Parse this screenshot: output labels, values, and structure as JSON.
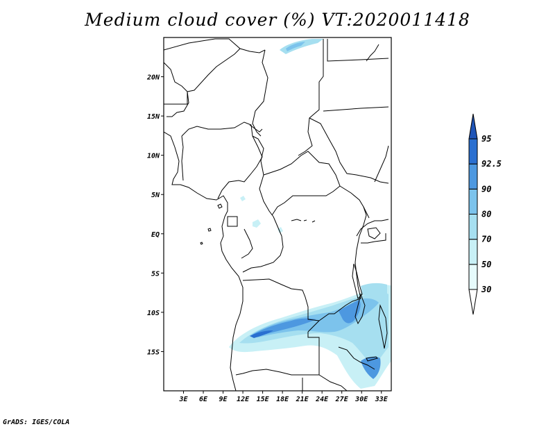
{
  "title": "Medium cloud cover (%) VT:2020011418",
  "credit": "GrADS: IGES/COLA",
  "axes": {
    "lat_ticks": [
      {
        "label": "20N",
        "lat": 20
      },
      {
        "label": "15N",
        "lat": 15
      },
      {
        "label": "10N",
        "lat": 10
      },
      {
        "label": "5N",
        "lat": 5
      },
      {
        "label": "EQ",
        "lat": 0
      },
      {
        "label": "5S",
        "lat": -5
      },
      {
        "label": "10S",
        "lat": -10
      },
      {
        "label": "15S",
        "lat": -15
      }
    ],
    "lon_ticks": [
      {
        "label": "3E",
        "lon": 3
      },
      {
        "label": "6E",
        "lon": 6
      },
      {
        "label": "9E",
        "lon": 9
      },
      {
        "label": "12E",
        "lon": 12
      },
      {
        "label": "15E",
        "lon": 15
      },
      {
        "label": "18E",
        "lon": 18
      },
      {
        "label": "21E",
        "lon": 21
      },
      {
        "label": "24E",
        "lon": 24
      },
      {
        "label": "27E",
        "lon": 27
      },
      {
        "label": "30E",
        "lon": 30
      },
      {
        "label": "33E",
        "lon": 33
      }
    ],
    "lon_range": [
      0,
      34.5
    ],
    "lat_range": [
      -20,
      25
    ]
  },
  "colorbar": {
    "levels": [
      "30",
      "50",
      "70",
      "80",
      "90",
      "92.5",
      "95"
    ],
    "colors": [
      "#ffffff",
      "#e6fbfc",
      "#c8f0f6",
      "#a6dff0",
      "#7cc3ec",
      "#4d98e0",
      "#2a6fd0",
      "#1f55b8"
    ]
  },
  "colors": {
    "frame": "#000000",
    "border": "#000000"
  }
}
